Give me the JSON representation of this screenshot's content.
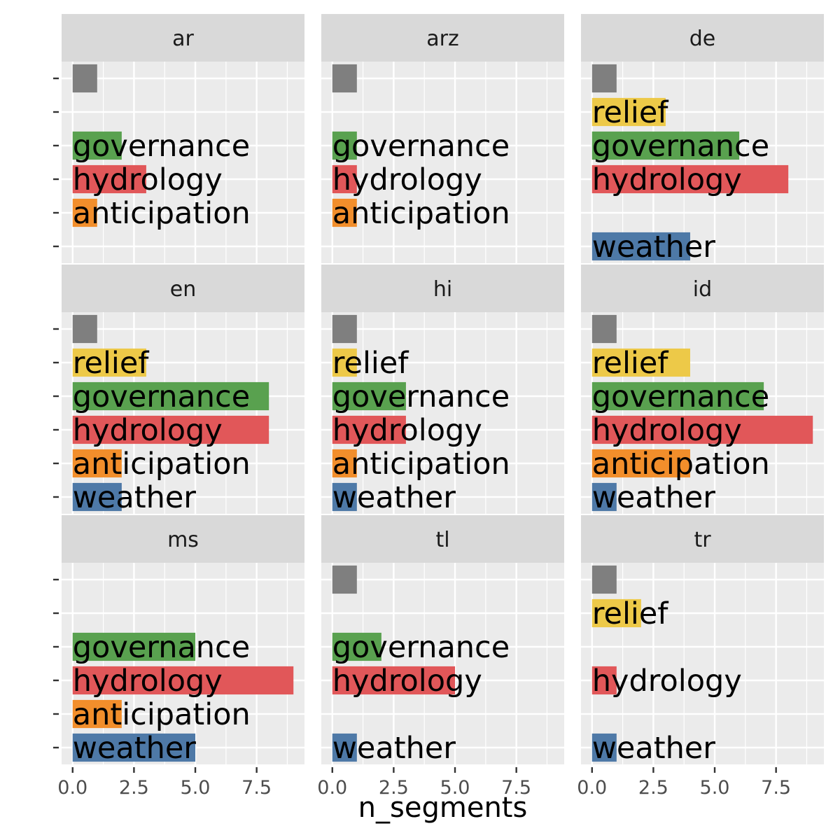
{
  "chart_data": {
    "type": "bar",
    "orientation": "horizontal",
    "xlabel": "n_segments",
    "xlim": [
      -0.45,
      9.45
    ],
    "xticks": [
      0.0,
      2.5,
      5.0,
      7.5
    ],
    "xtick_labels": [
      "0.0",
      "2.5",
      "5.0",
      "7.5"
    ],
    "categories": [
      "weather",
      "anticipation",
      "hydrology",
      "governance",
      "relief",
      ""
    ],
    "category_colors": {
      "weather": "#4E79A7",
      "anticipation": "#F28E2B",
      "hydrology": "#E15759",
      "governance": "#59A14F",
      "relief": "#EDC948",
      "": "#7F7F7F"
    },
    "panels": [
      {
        "facet": "ar",
        "values": {
          "": 1,
          "governance": 2,
          "hydrology": 3,
          "anticipation": 1
        }
      },
      {
        "facet": "arz",
        "values": {
          "": 1,
          "governance": 1,
          "hydrology": 1,
          "anticipation": 1
        }
      },
      {
        "facet": "de",
        "values": {
          "": 1,
          "relief": 3,
          "governance": 6,
          "hydrology": 8,
          "weather": 4
        }
      },
      {
        "facet": "en",
        "values": {
          "": 1,
          "relief": 3,
          "governance": 8,
          "hydrology": 8,
          "anticipation": 2,
          "weather": 2
        }
      },
      {
        "facet": "hi",
        "values": {
          "": 1,
          "relief": 1,
          "governance": 3,
          "hydrology": 3,
          "anticipation": 1,
          "weather": 1
        }
      },
      {
        "facet": "id",
        "values": {
          "": 1,
          "relief": 4,
          "governance": 7,
          "hydrology": 9,
          "anticipation": 4,
          "weather": 1
        }
      },
      {
        "facet": "ms",
        "values": {
          "governance": 5,
          "hydrology": 9,
          "anticipation": 2,
          "weather": 5
        }
      },
      {
        "facet": "tl",
        "values": {
          "": 1,
          "governance": 2,
          "hydrology": 5,
          "weather": 1
        }
      },
      {
        "facet": "tr",
        "values": {
          "": 1,
          "relief": 2,
          "hydrology": 1,
          "weather": 1
        }
      }
    ],
    "grid": true,
    "legend": "none"
  }
}
